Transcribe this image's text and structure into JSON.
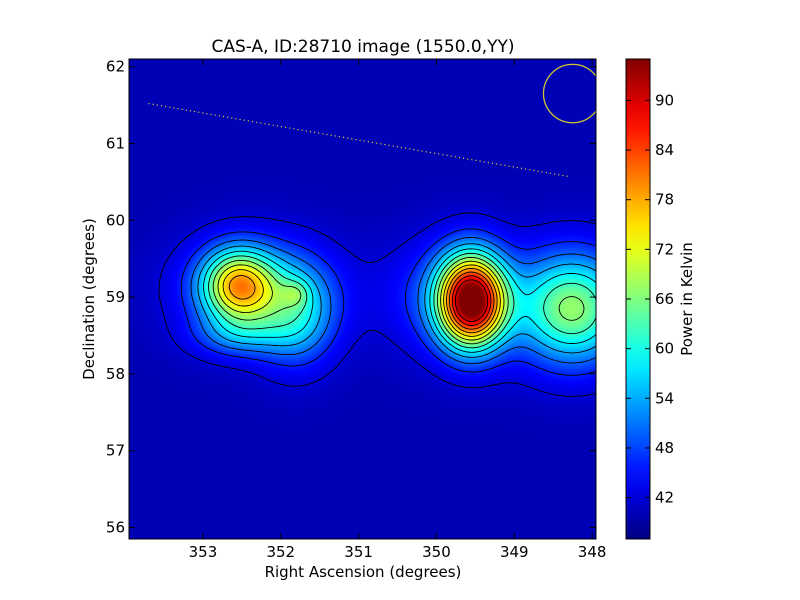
{
  "chart_data": {
    "type": "heatmap",
    "title": "CAS-A, ID:28710 image (1550.0,YY)",
    "xlabel": "Right Ascension (degrees)",
    "ylabel": "Declination (degrees)",
    "xlim": [
      353.95,
      347.95
    ],
    "ylim": [
      55.85,
      62.1
    ],
    "x_reversed": true,
    "x_ticks": [
      353,
      352,
      351,
      350,
      349,
      348
    ],
    "y_ticks": [
      56,
      57,
      58,
      59,
      60,
      61,
      62
    ],
    "colorbar": {
      "label": "Power in Kelvin",
      "range": [
        37,
        95
      ],
      "ticks": [
        42,
        48,
        54,
        60,
        66,
        72,
        78,
        84,
        90
      ],
      "colormap": "jet"
    },
    "background_level": 40,
    "sources": [
      {
        "ra": 352.55,
        "dec": 59.15,
        "peak": 29,
        "sx": 0.32,
        "sy": 0.33
      },
      {
        "ra": 352.3,
        "dec": 59.1,
        "peak": 12,
        "sx": 0.65,
        "sy": 0.45
      },
      {
        "ra": 351.8,
        "dec": 58.75,
        "peak": 14,
        "sx": 0.35,
        "sy": 0.45
      },
      {
        "ra": 352.55,
        "dec": 58.5,
        "peak": 8,
        "sx": 0.4,
        "sy": 0.2
      },
      {
        "ra": 351.8,
        "dec": 59.05,
        "peak": 6,
        "sx": 0.12,
        "sy": 0.12
      },
      {
        "ra": 349.55,
        "dec": 58.95,
        "peak": 53,
        "sx": 0.3,
        "sy": 0.42
      },
      {
        "ra": 349.8,
        "dec": 59.0,
        "peak": 8,
        "sx": 0.6,
        "sy": 0.5
      },
      {
        "ra": 348.25,
        "dec": 58.85,
        "peak": 27,
        "sx": 0.5,
        "sy": 0.5
      }
    ],
    "contour_levels": [
      42,
      46,
      50,
      54,
      58,
      62,
      66,
      70,
      74,
      78,
      82,
      86,
      90
    ],
    "annotations": {
      "beam_circle": {
        "ra": 348.25,
        "dec": 61.65,
        "radius_deg": 0.38,
        "color": "#d4c830"
      },
      "dotted_line": {
        "from": [
          353.7,
          61.52
        ],
        "to": [
          348.3,
          60.57
        ],
        "color": "#d4c830"
      }
    }
  }
}
